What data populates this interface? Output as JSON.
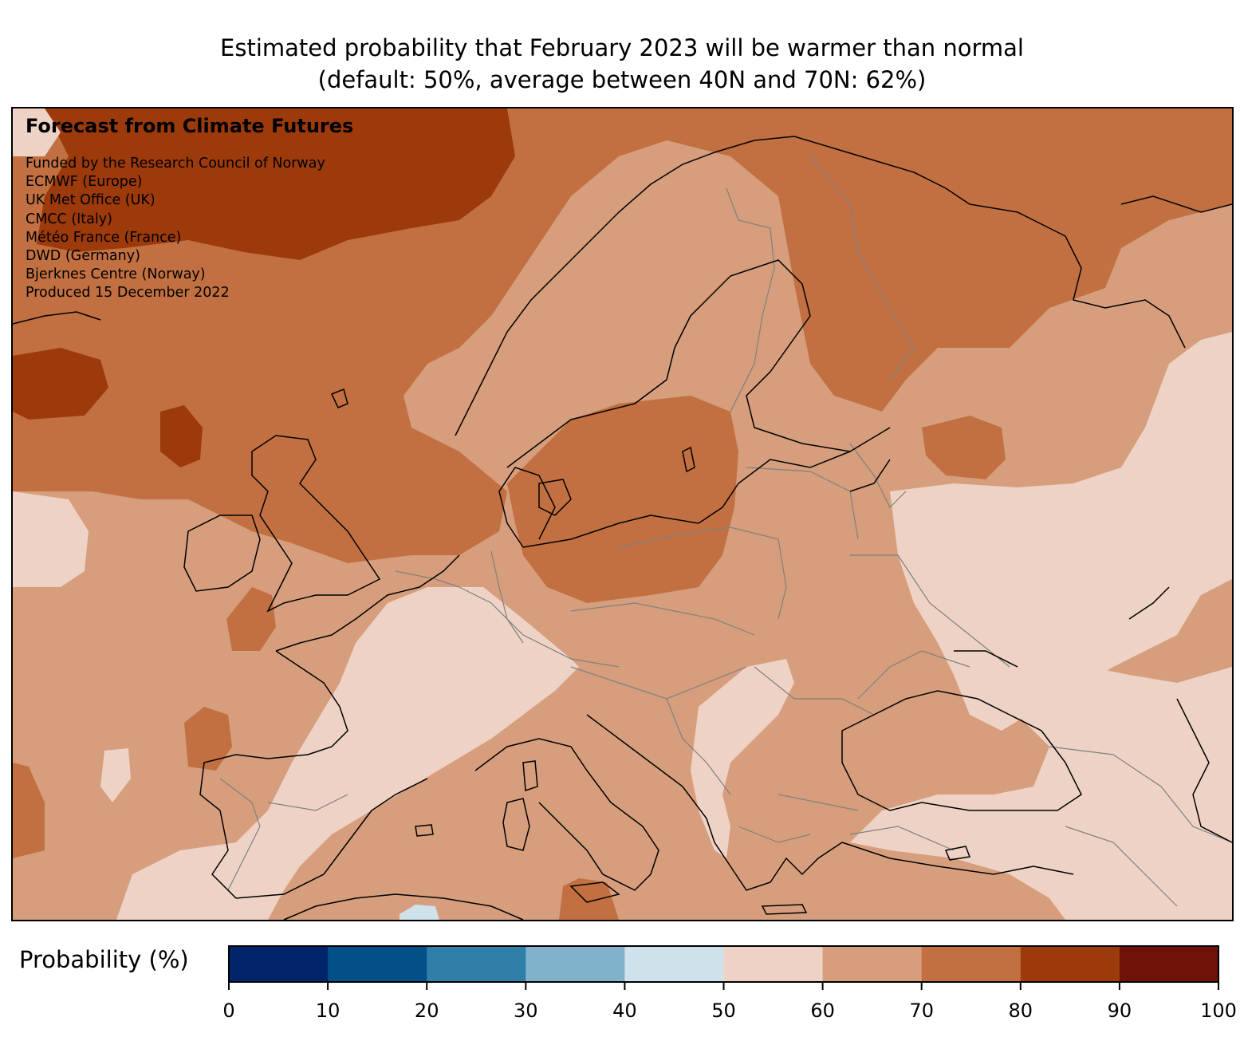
{
  "title": {
    "line1": "Estimated probability that February 2023 will be warmer than normal",
    "line2": "(default: 50%, average between 40N and 70N: 62%)"
  },
  "map": {
    "heading": "Forecast from Climate Futures",
    "credits": [
      "Funded by the Research Council of Norway",
      "ECMWF (Europe)",
      "UK Met Office (UK)",
      "CMCC (Italy)",
      "Météo France (France)",
      "DWD (Germany)",
      "Bjerknes Centre (Norway)",
      "Produced 15 December 2022"
    ]
  },
  "colorbar": {
    "label": "Probability (%)",
    "ticks": [
      "0",
      "10",
      "20",
      "30",
      "40",
      "50",
      "60",
      "70",
      "80",
      "90",
      "100"
    ],
    "bin_colors": [
      "#00256b",
      "#034f88",
      "#2f7fa8",
      "#80b2cc",
      "#cfe1ea",
      "#eed2c6",
      "#d69e7c",
      "#c27041",
      "#9c3a0b",
      "#6e120a"
    ]
  }
}
